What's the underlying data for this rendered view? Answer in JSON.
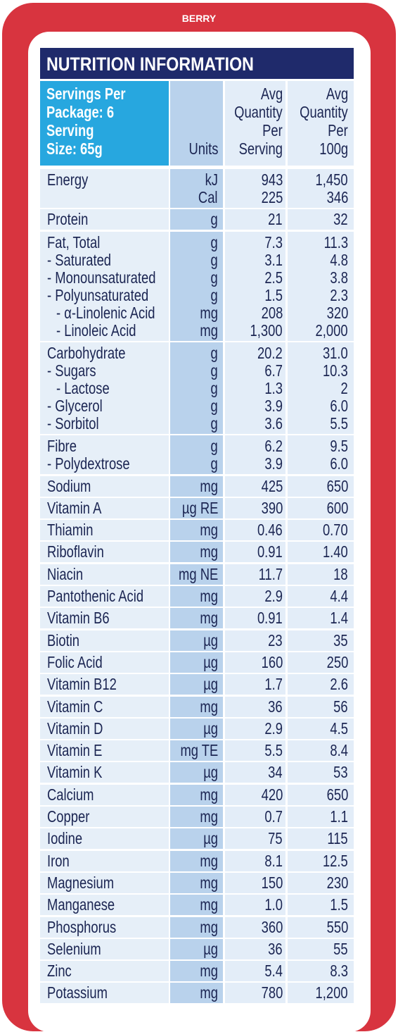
{
  "brand_label": "BERRY",
  "title": "NUTRITION INFORMATION",
  "header": {
    "servings": [
      "Servings Per",
      "Package: 6",
      "Serving",
      "Size: 65g"
    ],
    "units": "Units",
    "per_serving": [
      "Avg",
      "Quantity",
      "Per",
      "Serving"
    ],
    "per_100g": [
      "Avg",
      "Quantity",
      "Per",
      "100g"
    ]
  },
  "groups": [
    [
      [
        "Energy",
        "kJ",
        "943",
        "1,450"
      ],
      [
        null,
        "Cal",
        "225",
        "346"
      ]
    ],
    [
      [
        "Protein",
        "g",
        "21",
        "32"
      ]
    ],
    [
      [
        "Fat, Total",
        "g",
        "7.3",
        "11.3"
      ],
      [
        "- Saturated",
        "g",
        "3.1",
        "4.8"
      ],
      [
        "- Monounsaturated",
        "g",
        "2.5",
        "3.8"
      ],
      [
        "- Polyunsaturated",
        "g",
        "1.5",
        "2.3"
      ],
      [
        "- α-Linolenic Acid",
        "mg",
        "208",
        "320"
      ],
      [
        "- Linoleic Acid",
        "mg",
        "1,300",
        "2,000"
      ]
    ],
    [
      [
        "Carbohydrate",
        "g",
        "20.2",
        "31.0"
      ],
      [
        "- Sugars",
        "g",
        "6.7",
        "10.3"
      ],
      [
        "- Lactose",
        "g",
        "1.3",
        "2"
      ],
      [
        "- Glycerol",
        "g",
        "3.9",
        "6.0"
      ],
      [
        "- Sorbitol",
        "g",
        "3.6",
        "5.5"
      ]
    ],
    [
      [
        "Fibre",
        "g",
        "6.2",
        "9.5"
      ],
      [
        "- Polydextrose",
        "g",
        "3.9",
        "6.0"
      ]
    ],
    [
      [
        "Sodium",
        "mg",
        "425",
        "650"
      ]
    ],
    [
      [
        "Vitamin A",
        "µg RE",
        "390",
        "600"
      ]
    ],
    [
      [
        "Thiamin",
        "mg",
        "0.46",
        "0.70"
      ]
    ],
    [
      [
        "Riboflavin",
        "mg",
        "0.91",
        "1.40"
      ]
    ],
    [
      [
        "Niacin",
        "mg NE",
        "11.7",
        "18"
      ]
    ],
    [
      [
        "Pantothenic Acid",
        "mg",
        "2.9",
        "4.4"
      ]
    ],
    [
      [
        "Vitamin B6",
        "mg",
        "0.91",
        "1.4"
      ]
    ],
    [
      [
        "Biotin",
        "µg",
        "23",
        "35"
      ]
    ],
    [
      [
        "Folic Acid",
        "µg",
        "160",
        "250"
      ]
    ],
    [
      [
        "Vitamin B12",
        "µg",
        "1.7",
        "2.6"
      ]
    ],
    [
      [
        "Vitamin C",
        "mg",
        "36",
        "56"
      ]
    ],
    [
      [
        "Vitamin D",
        "µg",
        "2.9",
        "4.5"
      ]
    ],
    [
      [
        "Vitamin E",
        "mg TE",
        "5.5",
        "8.4"
      ]
    ],
    [
      [
        "Vitamin K",
        "µg",
        "34",
        "53"
      ]
    ],
    [
      [
        "Calcium",
        "mg",
        "420",
        "650"
      ]
    ],
    [
      [
        "Copper",
        "mg",
        "0.7",
        "1.1"
      ]
    ],
    [
      [
        "Iodine",
        "µg",
        "75",
        "115"
      ]
    ],
    [
      [
        "Iron",
        "mg",
        "8.1",
        "12.5"
      ]
    ],
    [
      [
        "Magnesium",
        "mg",
        "150",
        "230"
      ]
    ],
    [
      [
        "Manganese",
        "mg",
        "1.0",
        "1.5"
      ]
    ],
    [
      [
        "Phosphorus",
        "mg",
        "360",
        "550"
      ]
    ],
    [
      [
        "Selenium",
        "µg",
        "36",
        "55"
      ]
    ],
    [
      [
        "Zinc",
        "mg",
        "5.4",
        "8.3"
      ]
    ],
    [
      [
        "Potassium",
        "mg",
        "780",
        "1,200"
      ]
    ]
  ]
}
